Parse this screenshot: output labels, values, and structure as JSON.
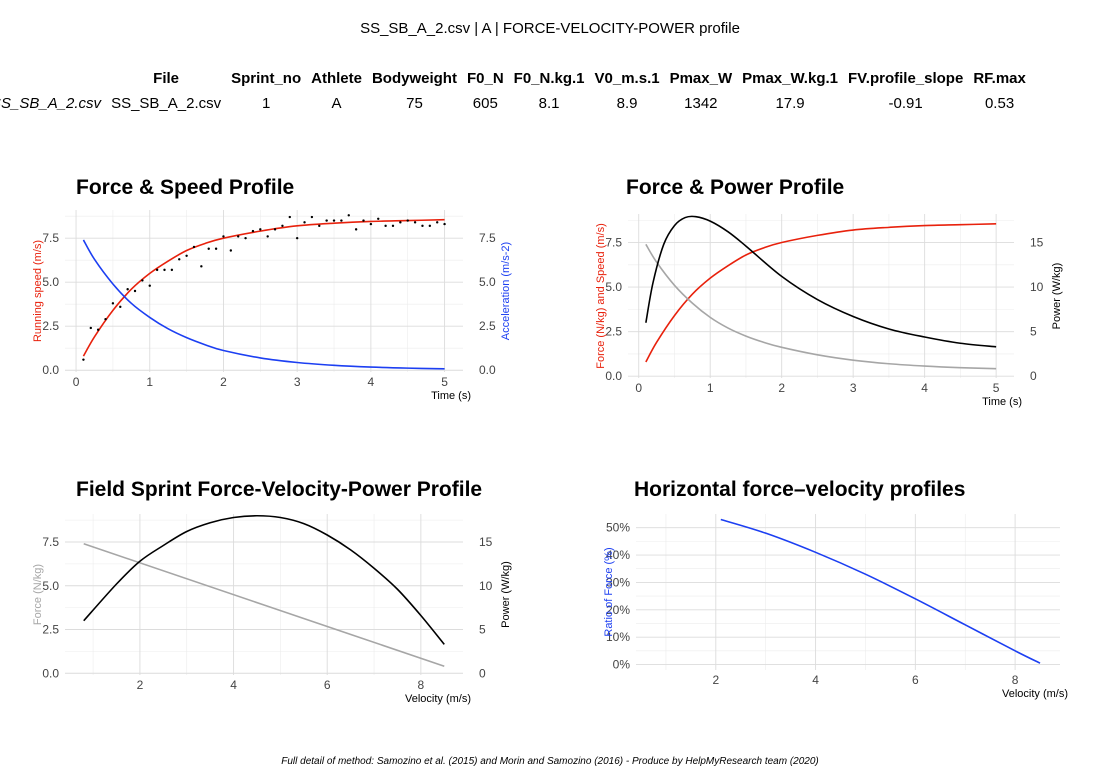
{
  "page": {
    "title": "SS_SB_A_2.csv | A | FORCE-VELOCITY-POWER profile",
    "footer": "Full detail of method: Samozino et al. (2015) and Morin and Samozino (2016) - Produce by HelpMyResearch team (2020)"
  },
  "summary_table": {
    "columns": [
      "File",
      "Sprint_no",
      "Athlete",
      "Bodyweight",
      "F0_N",
      "F0_N.kg.1",
      "V0_m.s.1",
      "Pmax_W",
      "Pmax_W.kg.1",
      "FV.profile_slope",
      "RF.max"
    ],
    "row_name": "SS_SB_A_2.csv",
    "values": [
      "SS_SB_A_2.csv",
      "1",
      "A",
      "75",
      "605",
      "8.1",
      "8.9",
      "1342",
      "17.9",
      "-0.91",
      "0.53"
    ]
  },
  "chart_data": [
    {
      "id": "force-speed",
      "type": "line",
      "title": "Force & Speed Profile",
      "xlabel": "Time (s)",
      "ylabel_left": "Running speed (m/s)",
      "ylabel_right": "Acceleration (m/s-2)",
      "xlim": [
        -0.15,
        5.25
      ],
      "ylim": [
        -0.1,
        9.1
      ],
      "xticks": [
        0,
        1,
        2,
        3,
        4,
        5
      ],
      "yticks_left": [
        "0.0",
        "2.5",
        "5.0",
        "7.5"
      ],
      "yticks_right": [
        "0.0",
        "2.5",
        "5.0",
        "7.5"
      ],
      "series": [
        {
          "name": "Running speed",
          "color": "#e8210c",
          "axis": "left",
          "kind": "model",
          "x": [
            0.1,
            0.25,
            0.5,
            0.75,
            1.0,
            1.25,
            1.5,
            1.75,
            2.0,
            2.5,
            3.0,
            3.5,
            4.0,
            4.5,
            5.0
          ],
          "y": [
            0.8,
            1.9,
            3.4,
            4.6,
            5.5,
            6.2,
            6.8,
            7.2,
            7.5,
            7.9,
            8.2,
            8.35,
            8.45,
            8.5,
            8.55
          ]
        },
        {
          "name": "Acceleration",
          "color": "#1c3ff2",
          "axis": "right",
          "kind": "model",
          "x": [
            0.1,
            0.25,
            0.5,
            0.75,
            1.0,
            1.25,
            1.5,
            1.75,
            2.0,
            2.5,
            3.0,
            3.5,
            4.0,
            4.5,
            5.0
          ],
          "y": [
            7.4,
            6.3,
            4.9,
            3.8,
            3.0,
            2.35,
            1.85,
            1.45,
            1.12,
            0.7,
            0.44,
            0.28,
            0.18,
            0.12,
            0.08
          ]
        },
        {
          "name": "Measured speed",
          "color": "#000000",
          "axis": "left",
          "kind": "points",
          "x": [
            0.1,
            0.2,
            0.3,
            0.4,
            0.5,
            0.6,
            0.7,
            0.8,
            0.9,
            1.0,
            1.1,
            1.2,
            1.3,
            1.4,
            1.5,
            1.6,
            1.7,
            1.8,
            1.9,
            2.0,
            2.1,
            2.2,
            2.3,
            2.4,
            2.5,
            2.6,
            2.7,
            2.8,
            2.9,
            3.0,
            3.1,
            3.2,
            3.3,
            3.4,
            3.5,
            3.6,
            3.7,
            3.8,
            3.9,
            4.0,
            4.1,
            4.2,
            4.3,
            4.4,
            4.5,
            4.6,
            4.7,
            4.8,
            4.9,
            5.0
          ],
          "y": [
            0.6,
            2.4,
            2.3,
            2.9,
            3.8,
            3.6,
            4.6,
            4.5,
            5.1,
            4.8,
            5.7,
            5.7,
            5.7,
            6.3,
            6.5,
            7.0,
            5.9,
            6.9,
            6.9,
            7.6,
            6.8,
            7.6,
            7.5,
            7.9,
            8.0,
            7.6,
            8.0,
            8.2,
            8.7,
            7.5,
            8.4,
            8.7,
            8.2,
            8.5,
            8.5,
            8.5,
            8.8,
            8.0,
            8.5,
            8.3,
            8.6,
            8.2,
            8.2,
            8.4,
            8.5,
            8.4,
            8.2,
            8.2,
            8.4,
            8.3
          ]
        }
      ]
    },
    {
      "id": "force-power",
      "type": "line",
      "title": "Force & Power Profile",
      "xlabel": "Time (s)",
      "ylabel_left": "Force (N/kg) and Speed (m/s)",
      "ylabel_right": "Power (W/kg)",
      "xlim": [
        -0.15,
        5.25
      ],
      "ylim": [
        -0.1,
        9.1
      ],
      "y2lim": [
        -0.2,
        18.2
      ],
      "xticks": [
        0,
        1,
        2,
        3,
        4,
        5
      ],
      "yticks_left": [
        "0.0",
        "2.5",
        "5.0",
        "7.5"
      ],
      "yticks_right": [
        "0",
        "5",
        "10",
        "15"
      ],
      "series": [
        {
          "name": "Speed",
          "color": "#e8210c",
          "axis": "left",
          "x": [
            0.1,
            0.25,
            0.5,
            0.75,
            1.0,
            1.25,
            1.5,
            1.75,
            2.0,
            2.5,
            3.0,
            3.5,
            4.0,
            4.5,
            5.0
          ],
          "y": [
            0.8,
            1.9,
            3.4,
            4.6,
            5.5,
            6.2,
            6.8,
            7.2,
            7.5,
            7.9,
            8.2,
            8.35,
            8.45,
            8.5,
            8.55
          ]
        },
        {
          "name": "Force",
          "color": "#a6a6a6",
          "axis": "left",
          "x": [
            0.1,
            0.25,
            0.5,
            0.75,
            1.0,
            1.25,
            1.5,
            1.75,
            2.0,
            2.5,
            3.0,
            3.5,
            4.0,
            4.5,
            5.0
          ],
          "y": [
            7.4,
            6.4,
            5.1,
            4.1,
            3.3,
            2.7,
            2.25,
            1.9,
            1.62,
            1.2,
            0.9,
            0.7,
            0.57,
            0.48,
            0.42
          ]
        },
        {
          "name": "Power",
          "color": "#000000",
          "axis": "right",
          "x": [
            0.1,
            0.2,
            0.35,
            0.5,
            0.65,
            0.8,
            1.0,
            1.25,
            1.5,
            2.0,
            2.5,
            3.0,
            3.5,
            4.0,
            4.5,
            5.0
          ],
          "y": [
            6.0,
            10.5,
            14.8,
            16.9,
            17.8,
            17.9,
            17.4,
            16.2,
            14.6,
            11.2,
            8.6,
            6.7,
            5.3,
            4.4,
            3.7,
            3.3
          ]
        }
      ]
    },
    {
      "id": "fv-power",
      "type": "line",
      "title": "Field Sprint Force-Velocity-Power Profile",
      "xlabel": "Velocity (m/s)",
      "ylabel_left": "Force (N/kg)",
      "ylabel_right": "Power (W/kg)",
      "xlim": [
        0.4,
        8.9
      ],
      "ylim": [
        -0.1,
        9.1
      ],
      "y2lim": [
        -0.2,
        18.2
      ],
      "xticks": [
        2,
        4,
        6,
        8
      ],
      "yticks_left": [
        "0.0",
        "2.5",
        "5.0",
        "7.5"
      ],
      "yticks_right": [
        "0",
        "5",
        "10",
        "15"
      ],
      "series": [
        {
          "name": "Force",
          "color": "#a6a6a6",
          "axis": "left",
          "x": [
            0.8,
            8.5
          ],
          "y": [
            7.4,
            0.4
          ]
        },
        {
          "name": "Power",
          "color": "#000000",
          "axis": "right",
          "x": [
            0.8,
            1.5,
            2.0,
            2.5,
            3.0,
            3.5,
            4.0,
            4.5,
            5.0,
            5.5,
            6.0,
            6.5,
            7.0,
            7.5,
            8.0,
            8.5
          ],
          "y": [
            6.0,
            10.2,
            12.8,
            14.6,
            16.2,
            17.2,
            17.8,
            18.0,
            17.8,
            17.1,
            15.8,
            14.1,
            12.0,
            9.6,
            6.6,
            3.3
          ]
        }
      ]
    },
    {
      "id": "rf-velocity",
      "type": "line",
      "title": "Horizontal force–velocity profiles",
      "xlabel": "Velocity (m/s)",
      "ylabel_left": "Ratio of Force (%)",
      "xlim": [
        0.4,
        8.9
      ],
      "ylim": [
        -0.02,
        0.55
      ],
      "xticks": [
        2,
        4,
        6,
        8
      ],
      "yticks_left": [
        "0%",
        "10%",
        "20%",
        "30%",
        "40%",
        "50%"
      ],
      "series": [
        {
          "name": "RF",
          "color": "#1c3ff2",
          "axis": "left",
          "x": [
            2.1,
            3.0,
            4.0,
            5.0,
            6.0,
            7.0,
            8.0,
            8.5
          ],
          "y": [
            0.53,
            0.48,
            0.41,
            0.33,
            0.24,
            0.145,
            0.05,
            0.005
          ]
        }
      ]
    }
  ]
}
